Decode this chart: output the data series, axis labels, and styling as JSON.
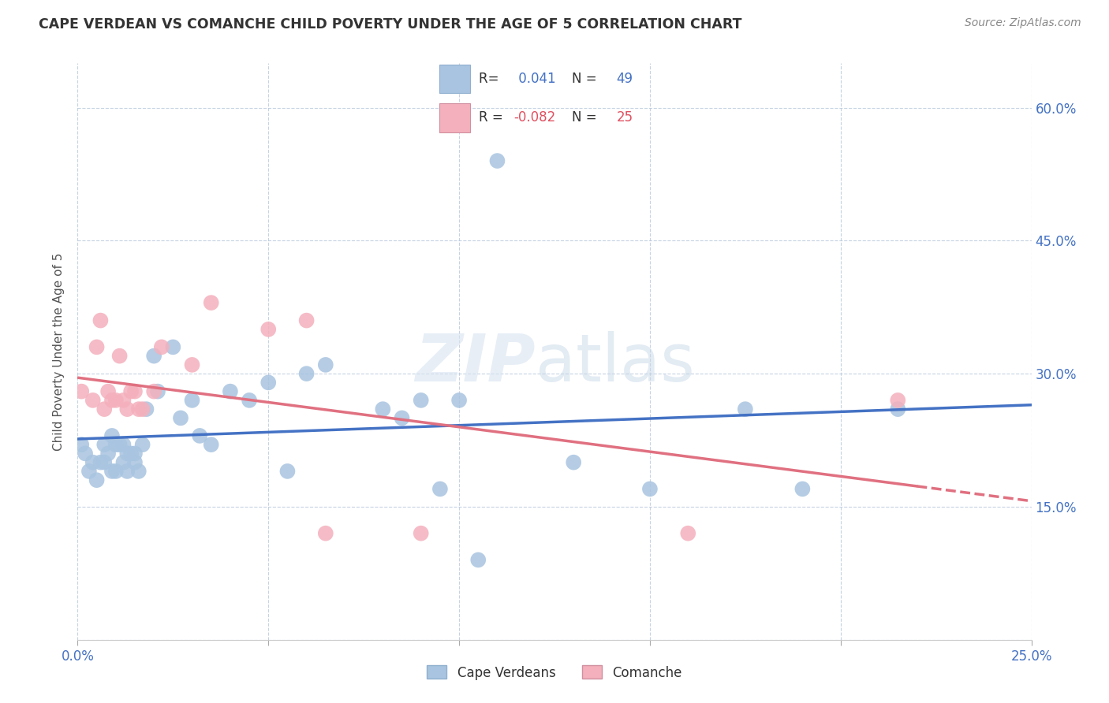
{
  "title": "CAPE VERDEAN VS COMANCHE CHILD POVERTY UNDER THE AGE OF 5 CORRELATION CHART",
  "source": "Source: ZipAtlas.com",
  "ylabel": "Child Poverty Under the Age of 5",
  "xlim": [
    0.0,
    0.25
  ],
  "ylim": [
    0.0,
    0.65
  ],
  "x_ticks": [
    0.0,
    0.05,
    0.1,
    0.15,
    0.2,
    0.25
  ],
  "y_ticks": [
    0.0,
    0.15,
    0.3,
    0.45,
    0.6
  ],
  "y_tick_labels_right": [
    "",
    "15.0%",
    "30.0%",
    "45.0%",
    "60.0%"
  ],
  "cape_verdean_R": 0.041,
  "cape_verdean_N": 49,
  "comanche_R": -0.082,
  "comanche_N": 25,
  "cape_verdean_color": "#a8c4e0",
  "comanche_color": "#f4b0bc",
  "cape_verdean_line_color": "#4472c4",
  "comanche_line_color": "#e07080",
  "watermark_zip": "ZIP",
  "watermark_atlas": "atlas",
  "cape_verdean_x": [
    0.001,
    0.002,
    0.003,
    0.004,
    0.005,
    0.006,
    0.007,
    0.007,
    0.008,
    0.009,
    0.009,
    0.01,
    0.01,
    0.011,
    0.012,
    0.012,
    0.013,
    0.013,
    0.014,
    0.015,
    0.015,
    0.016,
    0.017,
    0.018,
    0.02,
    0.021,
    0.025,
    0.027,
    0.03,
    0.032,
    0.035,
    0.04,
    0.045,
    0.05,
    0.055,
    0.06,
    0.065,
    0.08,
    0.085,
    0.09,
    0.095,
    0.1,
    0.105,
    0.11,
    0.13,
    0.15,
    0.175,
    0.19,
    0.215
  ],
  "cape_verdean_y": [
    0.22,
    0.21,
    0.19,
    0.2,
    0.18,
    0.2,
    0.22,
    0.2,
    0.21,
    0.19,
    0.23,
    0.22,
    0.19,
    0.22,
    0.2,
    0.22,
    0.21,
    0.19,
    0.21,
    0.21,
    0.2,
    0.19,
    0.22,
    0.26,
    0.32,
    0.28,
    0.33,
    0.25,
    0.27,
    0.23,
    0.22,
    0.28,
    0.27,
    0.29,
    0.19,
    0.3,
    0.31,
    0.26,
    0.25,
    0.27,
    0.17,
    0.27,
    0.09,
    0.54,
    0.2,
    0.17,
    0.26,
    0.17,
    0.26
  ],
  "comanche_x": [
    0.001,
    0.004,
    0.005,
    0.006,
    0.007,
    0.008,
    0.009,
    0.01,
    0.011,
    0.012,
    0.013,
    0.014,
    0.015,
    0.016,
    0.017,
    0.02,
    0.022,
    0.03,
    0.035,
    0.05,
    0.06,
    0.065,
    0.09,
    0.16,
    0.215
  ],
  "comanche_y": [
    0.28,
    0.27,
    0.33,
    0.36,
    0.26,
    0.28,
    0.27,
    0.27,
    0.32,
    0.27,
    0.26,
    0.28,
    0.28,
    0.26,
    0.26,
    0.28,
    0.33,
    0.31,
    0.38,
    0.35,
    0.36,
    0.12,
    0.12,
    0.12,
    0.27
  ]
}
